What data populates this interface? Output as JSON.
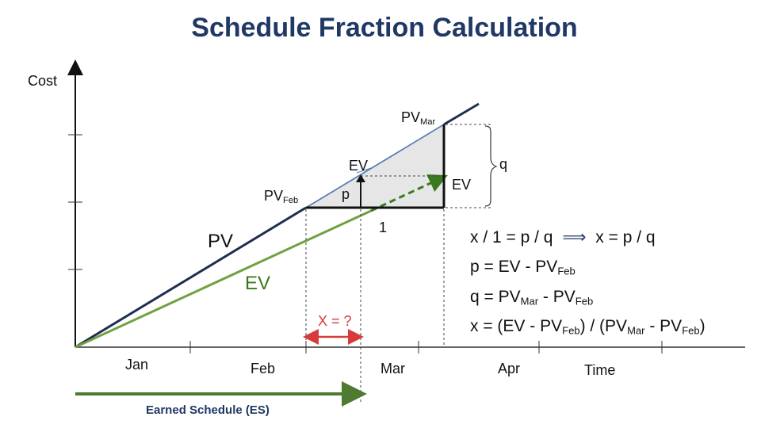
{
  "title": "Schedule Fraction Calculation",
  "axes": {
    "y_label": "Cost",
    "x_label": "Time",
    "months": [
      "Jan",
      "Feb",
      "Mar",
      "Apr"
    ]
  },
  "labels": {
    "pv_mar_main": "PV",
    "pv_mar_sub": "Mar",
    "pv_feb_main": "PV",
    "pv_feb_sub": "Feb",
    "ev_upper": "EV",
    "ev_right": "EV",
    "p": "p",
    "q": "q",
    "one": "1",
    "pv_line": "PV",
    "ev_line": "EV",
    "x_unknown": "X = ?",
    "earned_schedule": "Earned Schedule (ES)"
  },
  "formulas": {
    "line1_a": "x / 1 = p / q",
    "implies": "⟹",
    "line1_b": "x = p / q",
    "line2_a": "p = EV - PV",
    "line2_sub": "Feb",
    "line3_a": "q = PV",
    "line3_sub1": "Mar",
    "line3_b": " - PV",
    "line3_sub2": "Feb",
    "line4_a": "x = (EV - PV",
    "line4_sub1": "Feb",
    "line4_b": ") / (PV",
    "line4_sub2": "Mar",
    "line4_c": " - PV",
    "line4_sub3": "Feb",
    "line4_d": ")"
  },
  "colors": {
    "title": "#1f3864",
    "pv_line": "#1f2d4f",
    "ev_line": "#70a040",
    "ev_label": "#3a7a1f",
    "hypotenuse": "#5b7fb6",
    "triangle_fill": "#e6e6e6",
    "x_arrow": "#d83a3a",
    "es_arrow": "#4f7a32",
    "es_text": "#1f3864"
  }
}
